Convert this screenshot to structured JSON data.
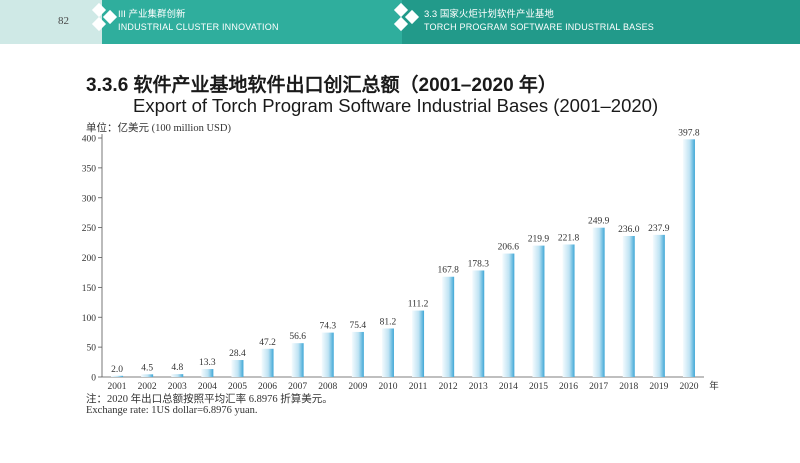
{
  "header": {
    "page_number": "82",
    "left_section_cn": "III 产业集群创新",
    "left_section_en": "INDUSTRIAL CLUSTER INNOVATION",
    "right_section_cn": "3.3 国家火炬计划软件产业基地",
    "right_section_en": "TORCH PROGRAM SOFTWARE INDUSTRIAL BASES"
  },
  "titles": {
    "cn": "3.3.6 软件产业基地软件出口创汇总额（2001–2020 年）",
    "en": "Export of Torch Program Software Industrial Bases (2001–2020)"
  },
  "unit": "单位：亿美元 (100 million USD)",
  "notes": {
    "cn": "注：2020 年出口总额按照平均汇率 6.8976 折算美元。",
    "en": "Exchange rate: 1US dollar=6.8976 yuan."
  },
  "colors": {
    "banner_light": "#cfe9e6",
    "banner_mid": "#2fae9d",
    "banner_dark": "#229a8a",
    "bar_light": "#eaf6fb",
    "bar_dark": "#3fa7d6"
  },
  "chart_data": {
    "type": "bar",
    "categories": [
      "2001",
      "2002",
      "2003",
      "2004",
      "2005",
      "2006",
      "2007",
      "2008",
      "2009",
      "2010",
      "2011",
      "2012",
      "2013",
      "2014",
      "2015",
      "2016",
      "2017",
      "2018",
      "2019",
      "2020"
    ],
    "values": [
      2.0,
      4.5,
      4.8,
      13.3,
      28.4,
      47.2,
      56.6,
      74.3,
      75.4,
      81.2,
      111.2,
      167.8,
      178.3,
      206.6,
      219.9,
      221.8,
      249.9,
      236.0,
      237.9,
      397.8
    ],
    "value_labels": [
      "2.0",
      "4.5",
      "4.8",
      "13.3",
      "28.4",
      "47.2",
      "56.6",
      "74.3",
      "75.4",
      "81.2",
      "111.2",
      "167.8",
      "178.3",
      "206.6",
      "219.9",
      "221.8",
      "249.9",
      "236.0",
      "237.9",
      "397.8"
    ],
    "ylim": [
      0,
      400
    ],
    "yticks": [
      0,
      50,
      100,
      150,
      200,
      250,
      300,
      350,
      400
    ],
    "x_unit_label": "年",
    "grid": false
  }
}
